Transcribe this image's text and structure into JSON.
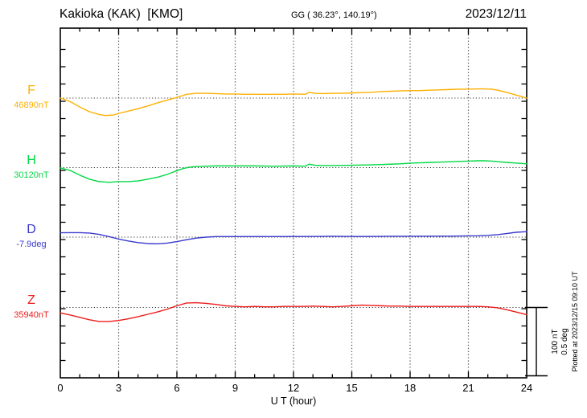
{
  "header": {
    "title": "Kakioka (KAK)  [KMO]",
    "coords": "GG ( 36.23°, 140.19°)",
    "date": "2023/12/11"
  },
  "footer": {
    "xlabel": "U T (hour)",
    "plotted_at": "Plotted at 2023/12/15 09:10 UT"
  },
  "scale_bar": {
    "line1": "100 nT",
    "line2": "0.5 deg"
  },
  "chart_data": {
    "type": "line",
    "title": "Kakioka (KAK) [KMO] magnetogram 2023/12/11",
    "xlabel": "U T (hour)",
    "xlim": [
      0,
      24
    ],
    "x_ticks": [
      0,
      3,
      6,
      9,
      12,
      15,
      18,
      21,
      24
    ],
    "grid": "dotted vertical gridlines every 3 hours; dotted horizontal baseline per trace",
    "scale": {
      "per_division_nT": 100,
      "per_division_deg": 0.5
    },
    "note": "each point is [hour UT, offset from base value in trace unit]",
    "series": [
      {
        "name": "F",
        "unit": "nT",
        "base_label": "46890nT",
        "base_value": 46890,
        "color": "#ffb000",
        "points": [
          [
            0,
            0
          ],
          [
            0.5,
            -5
          ],
          [
            1,
            -13
          ],
          [
            1.5,
            -20
          ],
          [
            2,
            -24
          ],
          [
            2.3,
            -25.5
          ],
          [
            2.7,
            -25
          ],
          [
            3,
            -22.5
          ],
          [
            3.5,
            -19
          ],
          [
            4,
            -15.5
          ],
          [
            4.5,
            -11.5
          ],
          [
            5,
            -7
          ],
          [
            5.5,
            -3
          ],
          [
            6,
            1
          ],
          [
            6.5,
            5.5
          ],
          [
            7,
            7
          ],
          [
            7.5,
            7
          ],
          [
            8,
            6.5
          ],
          [
            8.5,
            6
          ],
          [
            9,
            6
          ],
          [
            9.5,
            5.5
          ],
          [
            10,
            5.5
          ],
          [
            10.5,
            5.5
          ],
          [
            11,
            5.5
          ],
          [
            11.5,
            5.5
          ],
          [
            12,
            6
          ],
          [
            12.6,
            5.5
          ],
          [
            12.8,
            8.5
          ],
          [
            13.1,
            7
          ],
          [
            13.5,
            6.5
          ],
          [
            14,
            7
          ],
          [
            14.5,
            7
          ],
          [
            15,
            7.5
          ],
          [
            15.5,
            8
          ],
          [
            16,
            8.5
          ],
          [
            16.5,
            9.5
          ],
          [
            17,
            10
          ],
          [
            17.5,
            10.5
          ],
          [
            18,
            11
          ],
          [
            18.5,
            11
          ],
          [
            19,
            11.5
          ],
          [
            19.5,
            12
          ],
          [
            20,
            12.5
          ],
          [
            20.5,
            13
          ],
          [
            21,
            13
          ],
          [
            21.5,
            13.5
          ],
          [
            21.8,
            13.5
          ],
          [
            22.2,
            13
          ],
          [
            22.6,
            11
          ],
          [
            23,
            8
          ],
          [
            23.5,
            4
          ],
          [
            24,
            0
          ]
        ]
      },
      {
        "name": "H",
        "unit": "nT",
        "base_label": "30120nT",
        "base_value": 30120,
        "color": "#00d944",
        "points": [
          [
            0,
            -0.5
          ],
          [
            0.5,
            -4
          ],
          [
            1,
            -11
          ],
          [
            1.5,
            -17
          ],
          [
            2,
            -20.5
          ],
          [
            2.5,
            -21.5
          ],
          [
            3,
            -20.5
          ],
          [
            3.5,
            -20.5
          ],
          [
            4,
            -19.5
          ],
          [
            4.5,
            -17
          ],
          [
            5,
            -14
          ],
          [
            5.5,
            -10
          ],
          [
            6,
            -4.5
          ],
          [
            6.3,
            -1.5
          ],
          [
            6.6,
            0.5
          ],
          [
            7,
            1.5
          ],
          [
            7.5,
            2
          ],
          [
            8,
            2.5
          ],
          [
            9,
            2.5
          ],
          [
            10,
            2.5
          ],
          [
            11,
            2
          ],
          [
            12,
            2.5
          ],
          [
            12.6,
            2
          ],
          [
            12.8,
            5
          ],
          [
            13.1,
            3.5
          ],
          [
            13.5,
            3
          ],
          [
            14,
            3
          ],
          [
            15,
            3.5
          ],
          [
            16,
            4
          ],
          [
            16.5,
            4.5
          ],
          [
            17,
            5
          ],
          [
            17.5,
            5.5
          ],
          [
            18,
            6.5
          ],
          [
            18.5,
            7
          ],
          [
            19,
            7.5
          ],
          [
            19.5,
            8
          ],
          [
            20,
            8.5
          ],
          [
            20.5,
            9
          ],
          [
            21,
            9.5
          ],
          [
            21.5,
            10
          ],
          [
            21.8,
            10
          ],
          [
            22.2,
            9.5
          ],
          [
            22.6,
            8.5
          ],
          [
            23,
            7.5
          ],
          [
            23.5,
            6.5
          ],
          [
            24,
            5.5
          ]
        ]
      },
      {
        "name": "D",
        "unit": "deg",
        "base_label": "-7.9deg",
        "base_value": -7.9,
        "color": "#3a3acd",
        "points": [
          [
            0,
            0.032
          ],
          [
            0.5,
            0.033
          ],
          [
            1,
            0.033
          ],
          [
            1.5,
            0.03
          ],
          [
            2,
            0.02
          ],
          [
            2.5,
            0.004
          ],
          [
            3,
            -0.014
          ],
          [
            3.5,
            -0.028
          ],
          [
            4,
            -0.04
          ],
          [
            4.5,
            -0.047
          ],
          [
            5,
            -0.049
          ],
          [
            5.5,
            -0.044
          ],
          [
            6,
            -0.033
          ],
          [
            6.5,
            -0.019
          ],
          [
            7,
            -0.007
          ],
          [
            7.5,
            0
          ],
          [
            8,
            0.004
          ],
          [
            9,
            0.004
          ],
          [
            10,
            0.004
          ],
          [
            11,
            0.004
          ],
          [
            12,
            0.005
          ],
          [
            13,
            0.005
          ],
          [
            14,
            0.006
          ],
          [
            15,
            0.005
          ],
          [
            16,
            0.005
          ],
          [
            17,
            0.006
          ],
          [
            18,
            0.006
          ],
          [
            19,
            0.007
          ],
          [
            20,
            0.007
          ],
          [
            21,
            0.009
          ],
          [
            21.5,
            0.01
          ],
          [
            22,
            0.013
          ],
          [
            22.5,
            0.018
          ],
          [
            23,
            0.027
          ],
          [
            23.5,
            0.036
          ],
          [
            24,
            0.04
          ]
        ]
      },
      {
        "name": "Z",
        "unit": "nT",
        "base_label": "35940nT",
        "base_value": 35940,
        "color": "#ee1c1c",
        "points": [
          [
            0,
            -8
          ],
          [
            0.5,
            -11
          ],
          [
            1,
            -14.5
          ],
          [
            1.5,
            -18
          ],
          [
            2,
            -20.5
          ],
          [
            2.5,
            -20.5
          ],
          [
            3,
            -19
          ],
          [
            3.5,
            -16.5
          ],
          [
            4,
            -13.5
          ],
          [
            4.5,
            -10
          ],
          [
            5,
            -6.5
          ],
          [
            5.5,
            -2.5
          ],
          [
            6,
            2.5
          ],
          [
            6.5,
            6.5
          ],
          [
            7,
            7
          ],
          [
            7.5,
            6
          ],
          [
            8,
            4.5
          ],
          [
            8.5,
            2.5
          ],
          [
            9,
            1.5
          ],
          [
            9.5,
            1
          ],
          [
            10,
            1.5
          ],
          [
            10.5,
            1
          ],
          [
            11,
            1
          ],
          [
            11.5,
            1.5
          ],
          [
            12,
            1.5
          ],
          [
            12.5,
            1.5
          ],
          [
            13,
            2
          ],
          [
            13.5,
            1.5
          ],
          [
            14,
            1
          ],
          [
            14.5,
            1.5
          ],
          [
            15,
            2.5
          ],
          [
            15.5,
            3.5
          ],
          [
            16,
            3
          ],
          [
            16.5,
            2.5
          ],
          [
            17,
            2
          ],
          [
            17.5,
            2
          ],
          [
            18,
            1.5
          ],
          [
            18.5,
            1.5
          ],
          [
            19,
            1.5
          ],
          [
            19.5,
            1.5
          ],
          [
            20,
            1.5
          ],
          [
            20.5,
            1.5
          ],
          [
            21,
            1.5
          ],
          [
            21.5,
            1.5
          ],
          [
            22,
            1
          ],
          [
            22.5,
            -0.5
          ],
          [
            23,
            -3.5
          ],
          [
            23.5,
            -7
          ],
          [
            24,
            -10.5
          ]
        ]
      }
    ]
  }
}
